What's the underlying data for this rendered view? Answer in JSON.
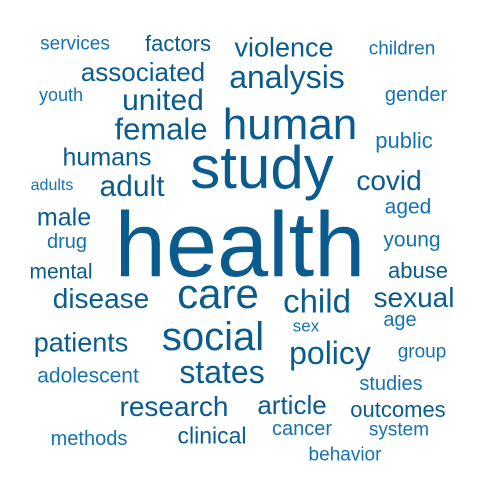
{
  "cloud": {
    "color_dark": "#0a5c8e",
    "color_light": "#1573b2",
    "words": {
      "health": "health",
      "study": "study",
      "human": "human",
      "care": "care",
      "social": "social",
      "analysis": "analysis",
      "policy": "policy",
      "child": "child",
      "states": "states",
      "female": "female",
      "united": "united",
      "adult": "adult",
      "disease": "disease",
      "research": "research",
      "covid": "covid",
      "sexual": "sexual",
      "patients": "patients",
      "violence": "violence",
      "associated": "associated",
      "humans": "humans",
      "male": "male",
      "article": "article",
      "outcomes": "outcomes",
      "clinical": "clinical",
      "mental": "mental",
      "adolescent": "adolescent",
      "abuse": "abuse",
      "factors": "factors",
      "public": "public",
      "aged": "aged",
      "studies": "studies",
      "young": "young",
      "children": "children",
      "gender": "gender",
      "services": "services",
      "youth": "youth",
      "adults": "adults",
      "drug": "drug",
      "age": "age",
      "sex": "sex",
      "group": "group",
      "cancer": "cancer",
      "methods": "methods",
      "system": "system",
      "behavior": "behavior"
    }
  }
}
